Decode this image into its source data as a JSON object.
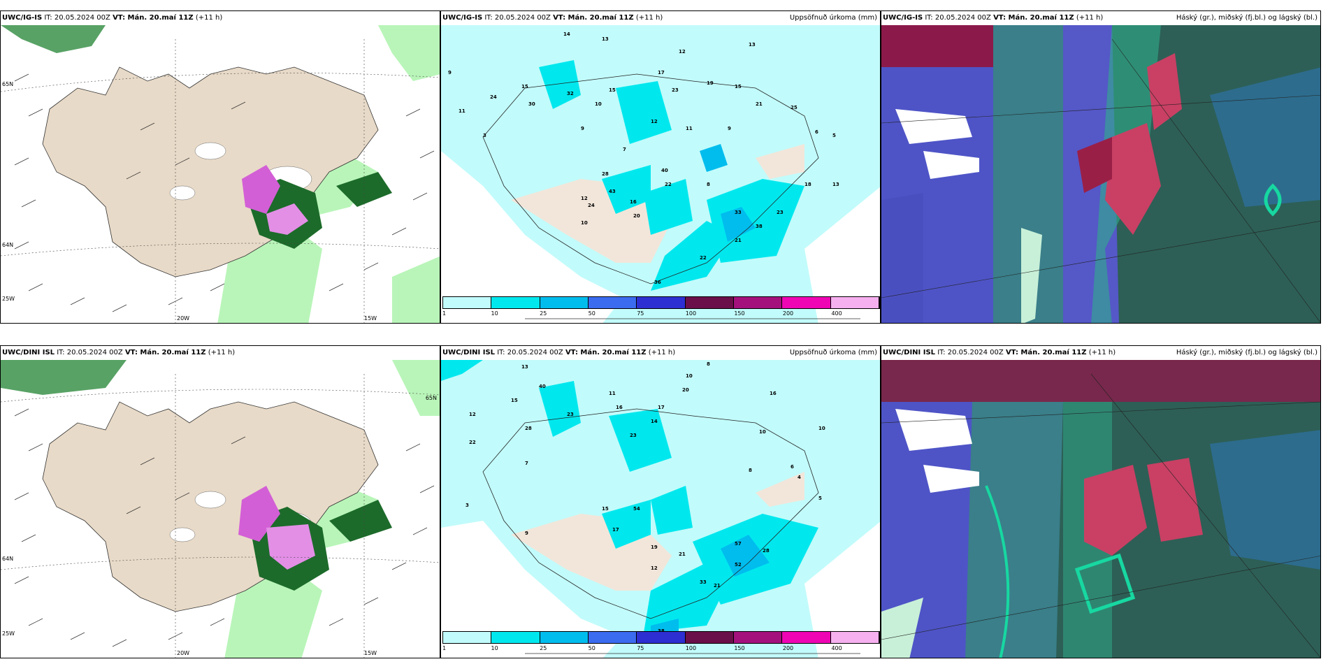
{
  "panels": [
    {
      "model": "UWC/IG-IS",
      "it": "IT: 20.05.2024 00Z",
      "vt": "VT: Mán. 20.maí 11Z",
      "lead": "(+11 h)",
      "right": ""
    },
    {
      "model": "UWC/IG-IS",
      "it": "IT: 20.05.2024 00Z",
      "vt": "VT: Mán. 20.maí 11Z",
      "lead": "(+11 h)",
      "right": "Uppsöfnuð úrkoma (mm)"
    },
    {
      "model": "UWC/IG-IS",
      "it": "IT: 20.05.2024 00Z",
      "vt": "VT: Mán. 20.maí 11Z",
      "lead": "(+11 h)",
      "right": "Háský (gr.), miðský (fj.bl.) og lágský (bl.)"
    },
    {
      "model": "UWC/DINI ISL",
      "it": "IT: 20.05.2024 00Z",
      "vt": "VT: Mán. 20.maí 11Z",
      "lead": "(+11 h)",
      "right": ""
    },
    {
      "model": "UWC/DINI ISL",
      "it": "IT: 20.05.2024 00Z",
      "vt": "VT: Mán. 20.maí 11Z",
      "lead": "(+11 h)",
      "right": "Uppsöfnuð úrkoma (mm)"
    },
    {
      "model": "UWC/DINI ISL",
      "it": "IT: 20.05.2024 00Z",
      "vt": "VT: Mán. 20.maí 11Z",
      "lead": "(+11 h)",
      "right": "Háský (gr.), miðský (fj.bl.) og lágský (bl.)"
    }
  ],
  "precip_colorbar": {
    "labels": [
      "1",
      "10",
      "25",
      "50",
      "75",
      "100",
      "150",
      "200",
      "400"
    ],
    "colors": [
      "#c2fbfb",
      "#00e8ee",
      "#00bdee",
      "#3b6bef",
      "#2d2fd2",
      "#6a0f4a",
      "#a4117d",
      "#ef05b4",
      "#f6b0ef"
    ]
  },
  "wind_labels_top": {
    "lat1": "65N",
    "lat2": "64N",
    "lon1": "20W",
    "lon2": "15W",
    "lon3": "25W"
  },
  "wind_labels_bot": {
    "lat1": "65N",
    "lat2": "64N",
    "lon1": "20W",
    "lon2": "15W",
    "lon3": "25W"
  },
  "precip_top_values": [
    "14",
    "13",
    "12",
    "13",
    "9",
    "11",
    "15",
    "24",
    "30",
    "32",
    "15",
    "17",
    "23",
    "19",
    "10",
    "12",
    "11",
    "15",
    "21",
    "25",
    "28",
    "43",
    "40",
    "22",
    "20",
    "16",
    "24",
    "12",
    "10",
    "5",
    "6",
    "9",
    "3",
    "7",
    "13",
    "18",
    "23",
    "21",
    "33",
    "38",
    "22",
    "36",
    "9",
    "8"
  ],
  "precip_bot_values": [
    "13",
    "8",
    "10",
    "11",
    "15",
    "23",
    "16",
    "17",
    "28",
    "54",
    "40",
    "10",
    "12",
    "14",
    "20",
    "22",
    "16",
    "23",
    "15",
    "17",
    "21",
    "28",
    "33",
    "57",
    "52",
    "21",
    "38",
    "19",
    "12",
    "8",
    "4",
    "6",
    "5",
    "3",
    "9",
    "7",
    "10"
  ],
  "cloud_legend_colors": {
    "high": "#2fae8b",
    "mid": "#4e54c6",
    "low": "#2d6c8d"
  }
}
